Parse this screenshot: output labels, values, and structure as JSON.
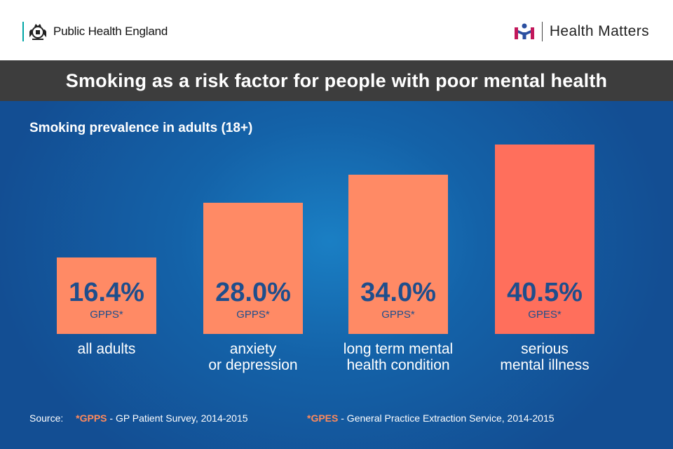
{
  "header": {
    "org_name": "Public Health England",
    "brand_name": "Health Matters",
    "brand_logo_text": "HM"
  },
  "title": "Smoking as a risk factor for people with poor mental health",
  "colors": {
    "accent_teal": "#00a6a6",
    "bar": "#ff8a65",
    "bar_highlight": "#ff6f5c",
    "value_text": "#1f4e8c",
    "title_bar": "#3d3d3d",
    "footnote_accent": "#ff8a5c"
  },
  "chart_data": {
    "type": "bar",
    "title": "Smoking prevalence in adults (18+)",
    "unit": "%",
    "categories": [
      [
        "all adults"
      ],
      [
        "anxiety",
        "or depression"
      ],
      [
        "long term mental",
        "health condition"
      ],
      [
        "serious",
        "mental illness"
      ]
    ],
    "values": [
      16.4,
      28.0,
      34.0,
      40.5
    ],
    "value_labels": [
      "16.4%",
      "28.0%",
      "34.0%",
      "40.5%"
    ],
    "sources": [
      "GPPS*",
      "GPPS*",
      "GPPS*",
      "GPES*"
    ]
  },
  "footer": {
    "label": "Source:",
    "note1_abbr": "*GPPS",
    "note1_text": " - GP Patient Survey, 2014-2015",
    "note2_abbr": "*GPES",
    "note2_text": " - General Practice Extraction Service, 2014-2015"
  }
}
